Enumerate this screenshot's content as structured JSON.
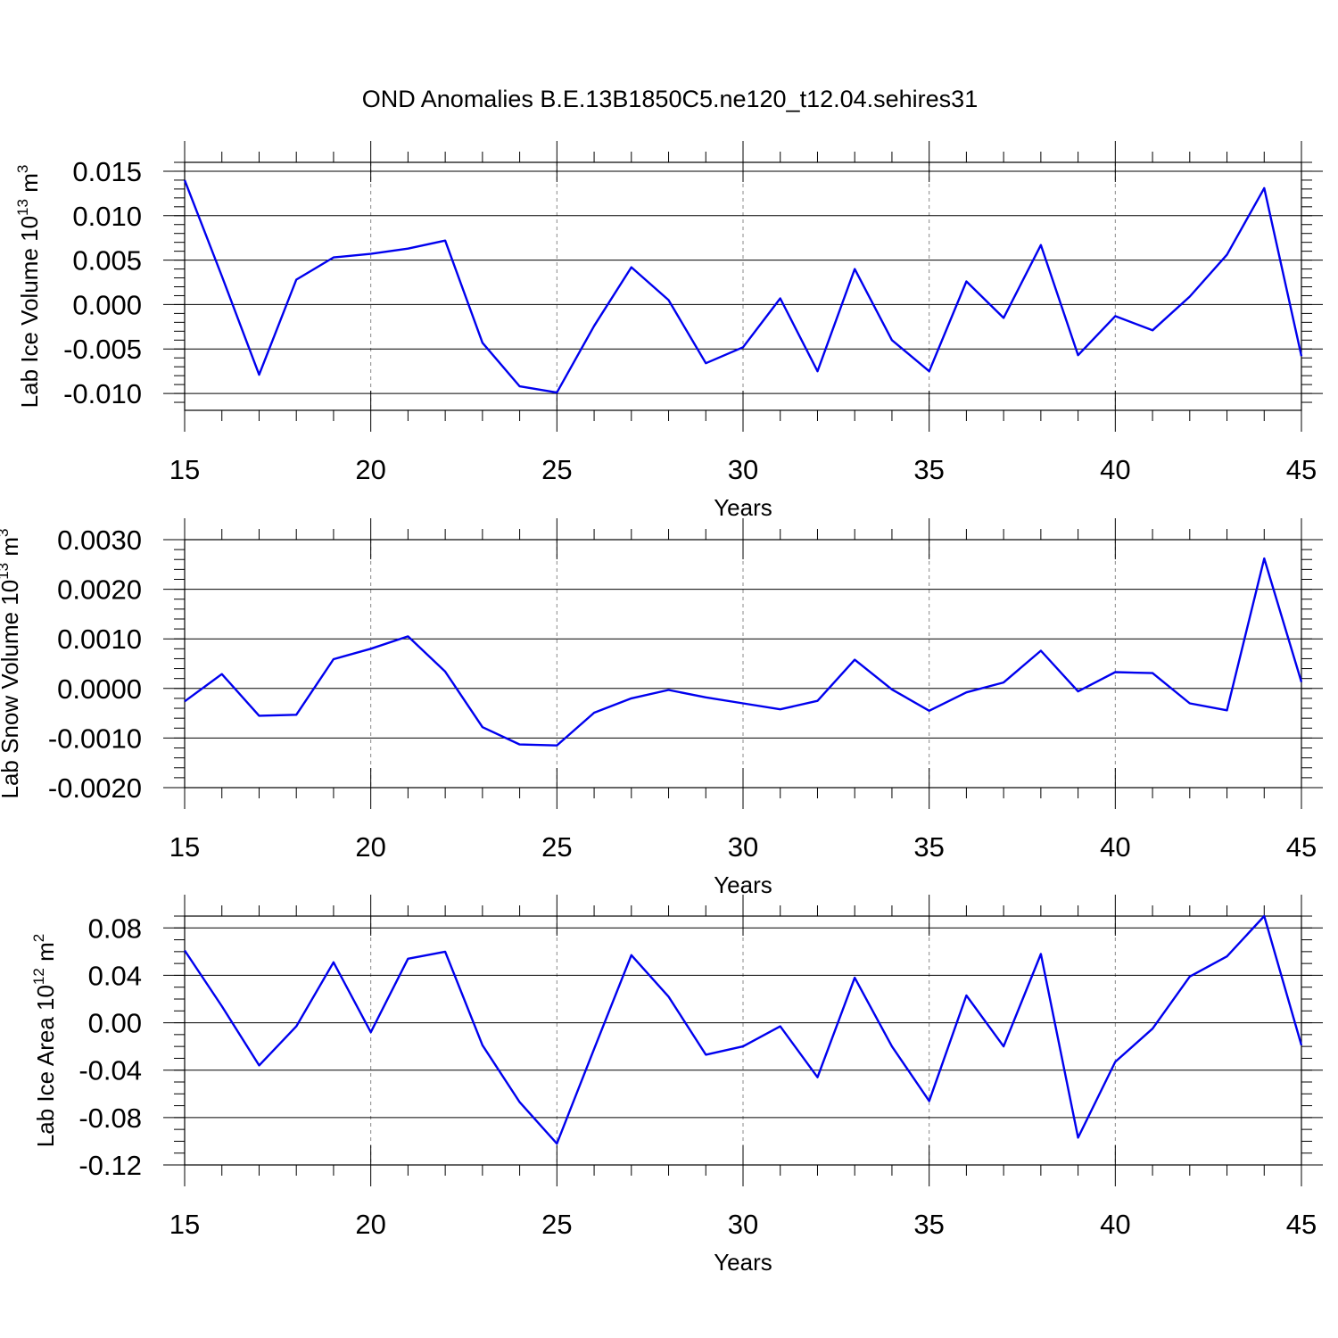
{
  "title": "OND Anomalies B.E.13B1850C5.ne120_t12.04.sehires31",
  "chart_data": [
    {
      "type": "line",
      "xlabel": "Years",
      "ylabel_text": "Lab Ice Volume 10",
      "ylabel_exp": "13",
      "ylabel_unit": " m",
      "ylabel_unit_exp": "3",
      "xlim": [
        15,
        45
      ],
      "ylim": [
        -0.0119,
        0.016
      ],
      "xticks": [
        15,
        20,
        25,
        30,
        35,
        40,
        45
      ],
      "yticks": [
        0.015,
        0.01,
        0.005,
        0.0,
        -0.005,
        -0.01
      ],
      "ytick_labels": [
        "0.015",
        "0.010",
        "0.005",
        "0.000",
        "-0.005",
        "-0.010"
      ],
      "yminor_step": 0.001,
      "color": "#0000ee",
      "x": [
        15,
        16,
        17,
        18,
        19,
        20,
        21,
        22,
        23,
        24,
        25,
        26,
        27,
        28,
        29,
        30,
        31,
        32,
        33,
        34,
        35,
        36,
        37,
        38,
        39,
        40,
        41,
        42,
        43,
        44,
        45
      ],
      "values": [
        0.014,
        0.0032,
        -0.0079,
        0.0028,
        0.0053,
        0.0057,
        0.0063,
        0.0072,
        -0.0043,
        -0.0092,
        -0.0099,
        -0.0024,
        0.0042,
        0.0005,
        -0.0066,
        -0.0048,
        0.0007,
        -0.0075,
        0.004,
        -0.004,
        -0.0075,
        0.0026,
        -0.0015,
        0.0067,
        -0.0057,
        -0.0013,
        -0.0029,
        0.0009,
        0.0056,
        0.0131,
        -0.0058
      ]
    },
    {
      "type": "line",
      "xlabel": "Years",
      "ylabel_text": "Lab Snow Volume 10",
      "ylabel_exp": "13",
      "ylabel_unit": " m",
      "ylabel_unit_exp": "3",
      "xlim": [
        15,
        45
      ],
      "ylim": [
        -0.002,
        0.003
      ],
      "xticks": [
        15,
        20,
        25,
        30,
        35,
        40,
        45
      ],
      "yticks": [
        0.003,
        0.002,
        0.001,
        0.0,
        -0.001,
        -0.002
      ],
      "ytick_labels": [
        "0.0030",
        "0.0020",
        "0.0010",
        "0.0000",
        "-0.0010",
        "-0.0020"
      ],
      "yminor_step": 0.0002,
      "color": "#0000ee",
      "x": [
        15,
        16,
        17,
        18,
        19,
        20,
        21,
        22,
        23,
        24,
        25,
        26,
        27,
        28,
        29,
        30,
        31,
        32,
        33,
        34,
        35,
        36,
        37,
        38,
        39,
        40,
        41,
        42,
        43,
        44,
        45
      ],
      "values": [
        -0.00026,
        0.00029,
        -0.00055,
        -0.00053,
        0.00059,
        0.0008,
        0.00105,
        0.00034,
        -0.00078,
        -0.00113,
        -0.00115,
        -0.00049,
        -0.0002,
        -3e-05,
        -0.00018,
        -0.0003,
        -0.00042,
        -0.00025,
        0.00058,
        -2e-05,
        -0.00045,
        -8e-05,
        0.00012,
        0.00076,
        -6e-05,
        0.00033,
        0.00031,
        -0.0003,
        -0.00044,
        0.00262,
        0.00013
      ]
    },
    {
      "type": "line",
      "xlabel": "Years",
      "ylabel_text": "Lab Ice Area 10",
      "ylabel_exp": "12",
      "ylabel_unit": " m",
      "ylabel_unit_exp": "2",
      "xlim": [
        15,
        45
      ],
      "ylim": [
        -0.12,
        0.09
      ],
      "xticks": [
        15,
        20,
        25,
        30,
        35,
        40,
        45
      ],
      "yticks": [
        0.08,
        0.04,
        0.0,
        -0.04,
        -0.08,
        -0.12
      ],
      "ytick_labels": [
        "0.08",
        "0.04",
        "0.00",
        "-0.04",
        "-0.08",
        "-0.12"
      ],
      "yminor_step": 0.01,
      "color": "#0000ee",
      "x": [
        15,
        16,
        17,
        18,
        19,
        20,
        21,
        22,
        23,
        24,
        25,
        26,
        27,
        28,
        29,
        30,
        31,
        32,
        33,
        34,
        35,
        36,
        37,
        38,
        39,
        40,
        41,
        42,
        43,
        44,
        45
      ],
      "values": [
        0.061,
        0.014,
        -0.036,
        -0.003,
        0.051,
        -0.008,
        0.054,
        0.06,
        -0.019,
        -0.067,
        -0.102,
        -0.022,
        0.057,
        0.022,
        -0.027,
        -0.02,
        -0.003,
        -0.046,
        0.038,
        -0.02,
        -0.066,
        0.023,
        -0.02,
        0.058,
        -0.097,
        -0.033,
        -0.005,
        0.039,
        0.056,
        0.09,
        -0.019
      ]
    }
  ]
}
